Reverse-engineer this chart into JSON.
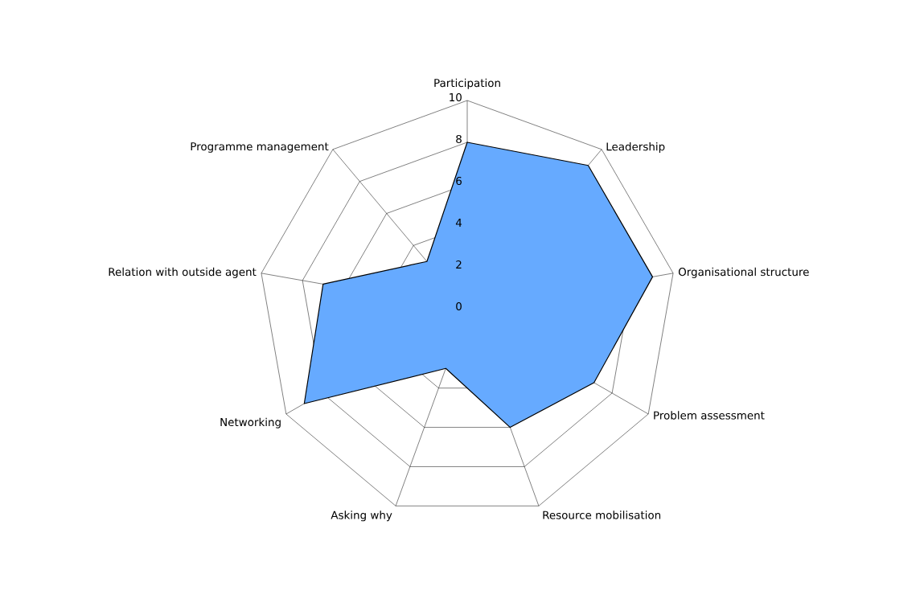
{
  "chart_data": {
    "type": "radar",
    "categories": [
      "Participation",
      "Leadership",
      "Organisational structure",
      "Problem assessment",
      "Resource mobilisation",
      "Asking why",
      "Networking",
      "Relation with outside agent",
      "Programme management"
    ],
    "series": [
      {
        "color": "#66aaff",
        "values": [
          8,
          9,
          9,
          7,
          6,
          3,
          9,
          7,
          3
        ]
      }
    ],
    "ylim": [
      0,
      10
    ],
    "yticks": [
      0,
      2,
      4,
      6,
      8,
      10
    ],
    "grid": true
  }
}
